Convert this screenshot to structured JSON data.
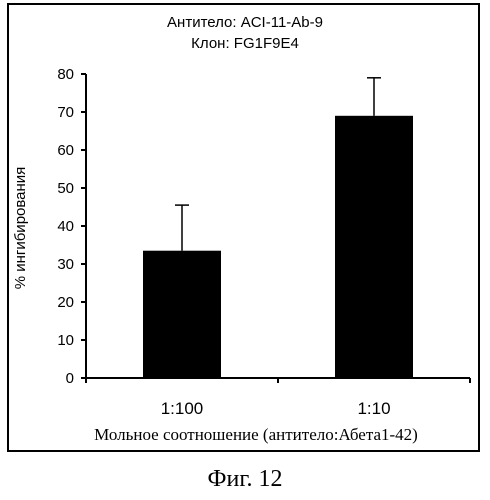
{
  "chart_data": {
    "type": "bar",
    "title": "Антитело: ACI-11-Ab-9",
    "subtitle": "Клон: FG1F9E4",
    "categories": [
      "1:100",
      "1:10"
    ],
    "values": [
      33.5,
      69
    ],
    "error_upper": [
      45.5,
      79
    ],
    "xlabel": "Мольное соотношение (антитело:Абета1-42)",
    "ylabel": "% ингибирования",
    "ylim": [
      0,
      80
    ],
    "yticks": [
      0,
      10,
      20,
      30,
      40,
      50,
      60,
      70,
      80
    ],
    "grid": false,
    "bar_color": "#000000"
  },
  "figure_caption": "Фиг. 12"
}
